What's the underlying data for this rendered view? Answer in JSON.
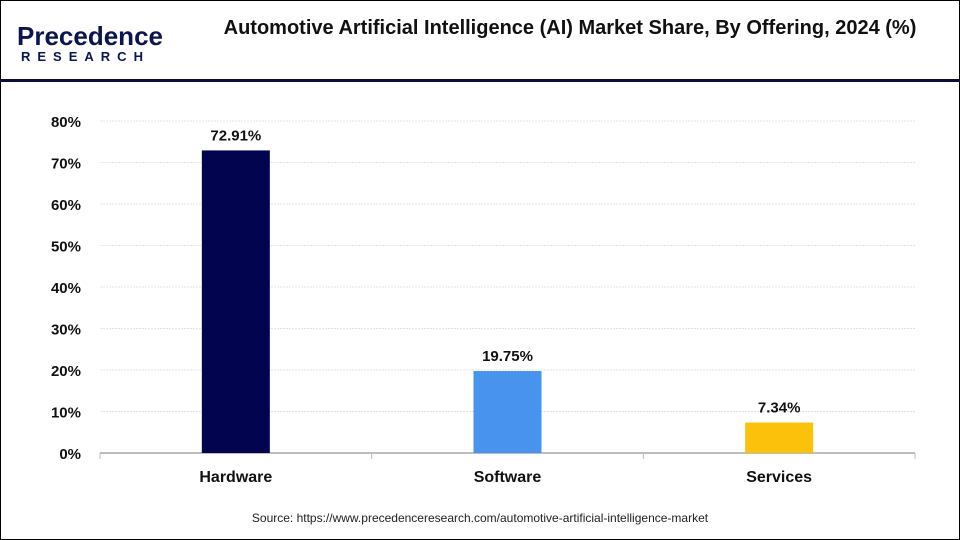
{
  "brand": {
    "logo_line1": "Precedence",
    "logo_line2": "RESEARCH"
  },
  "colors": {
    "hardware": "#03044f",
    "software": "#4893ee",
    "services": "#fcc10a",
    "divider": "#0b0f3a"
  },
  "source": "Source: https://www.precedenceresearch.com/automotive-artificial-intelligence-market",
  "chart_data": {
    "type": "bar",
    "title": "Automotive Artificial Intelligence (AI) Market Share, By Offering, 2024 (%)",
    "categories": [
      "Hardware",
      "Software",
      "Services"
    ],
    "values": [
      72.91,
      19.75,
      7.34
    ],
    "data_labels": [
      "72.91%",
      "19.75%",
      "7.34%"
    ],
    "ylim": [
      0,
      80
    ],
    "yticks": [
      "0%",
      "10%",
      "20%",
      "30%",
      "40%",
      "50%",
      "60%",
      "70%",
      "80%"
    ],
    "xlabel": "",
    "ylabel": "",
    "grid": true,
    "legend": "none"
  }
}
